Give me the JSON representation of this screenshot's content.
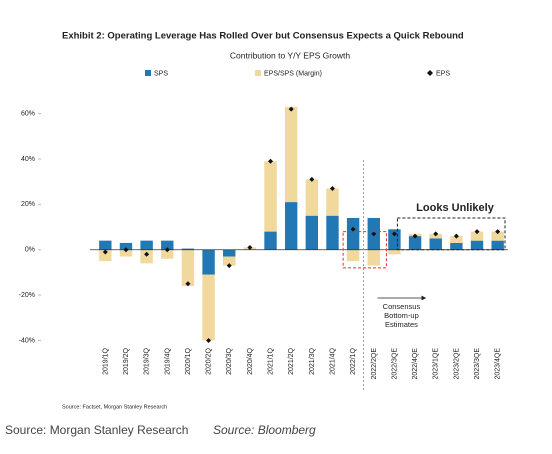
{
  "chart_data": {
    "type": "bar",
    "title": "Exhibit 2: Operating Leverage Has Rolled Over but Consensus Expects a Quick Rebound",
    "subtitle": "Contribution to Y/Y EPS Growth",
    "stacked": true,
    "categories": [
      "2019/1Q",
      "2019/2Q",
      "2019/3Q",
      "2019/4Q",
      "2020/1Q",
      "2020/2Q",
      "2020/3Q",
      "2020/4Q",
      "2021/1Q",
      "2021/2Q",
      "2021/3Q",
      "2021/4Q",
      "2022/1Q",
      "2022/2QE",
      "2022/3QE",
      "2022/4QE",
      "2023/1QE",
      "2023/2QE",
      "2023/3QE",
      "2023/4QE"
    ],
    "series": [
      {
        "name": "SPS",
        "type": "bar",
        "color": "#2178b4",
        "values": [
          4,
          3,
          4,
          4,
          0.5,
          -11,
          -3,
          0,
          8,
          21,
          15,
          15,
          14,
          14,
          9,
          6,
          5,
          3,
          4,
          4
        ]
      },
      {
        "name": "EPS/SPS (Margin)",
        "type": "bar",
        "color": "#f1d89c",
        "values": [
          -5,
          -3,
          -6,
          -4,
          -16,
          -29,
          -4,
          1,
          31,
          42,
          16,
          12,
          -5,
          -7,
          -2,
          1,
          2,
          3,
          4,
          4
        ]
      },
      {
        "name": "EPS",
        "type": "scatter",
        "color": "#111111",
        "values": [
          -1,
          0,
          -2,
          0,
          -15,
          -40,
          -7,
          1,
          39,
          62,
          31,
          27,
          9,
          7,
          7,
          6,
          7,
          6,
          8,
          8
        ]
      }
    ],
    "ylim": [
      -42,
      66
    ],
    "yticks": [
      {
        "value": -40,
        "label": "-40%"
      },
      {
        "value": -20,
        "label": "-20%"
      },
      {
        "value": 0,
        "label": "0%"
      },
      {
        "value": 20,
        "label": "20%"
      },
      {
        "value": 40,
        "label": "40%"
      },
      {
        "value": 60,
        "label": "60%"
      }
    ],
    "annotations": [
      "Looks Unlikely",
      "Consensus",
      "Bottom-up",
      "Estimates"
    ],
    "source": "Source: Factset, Morgan Stanley Research",
    "caption": [
      "Source: Morgan Stanley Research",
      "Source: Bloomberg"
    ]
  }
}
